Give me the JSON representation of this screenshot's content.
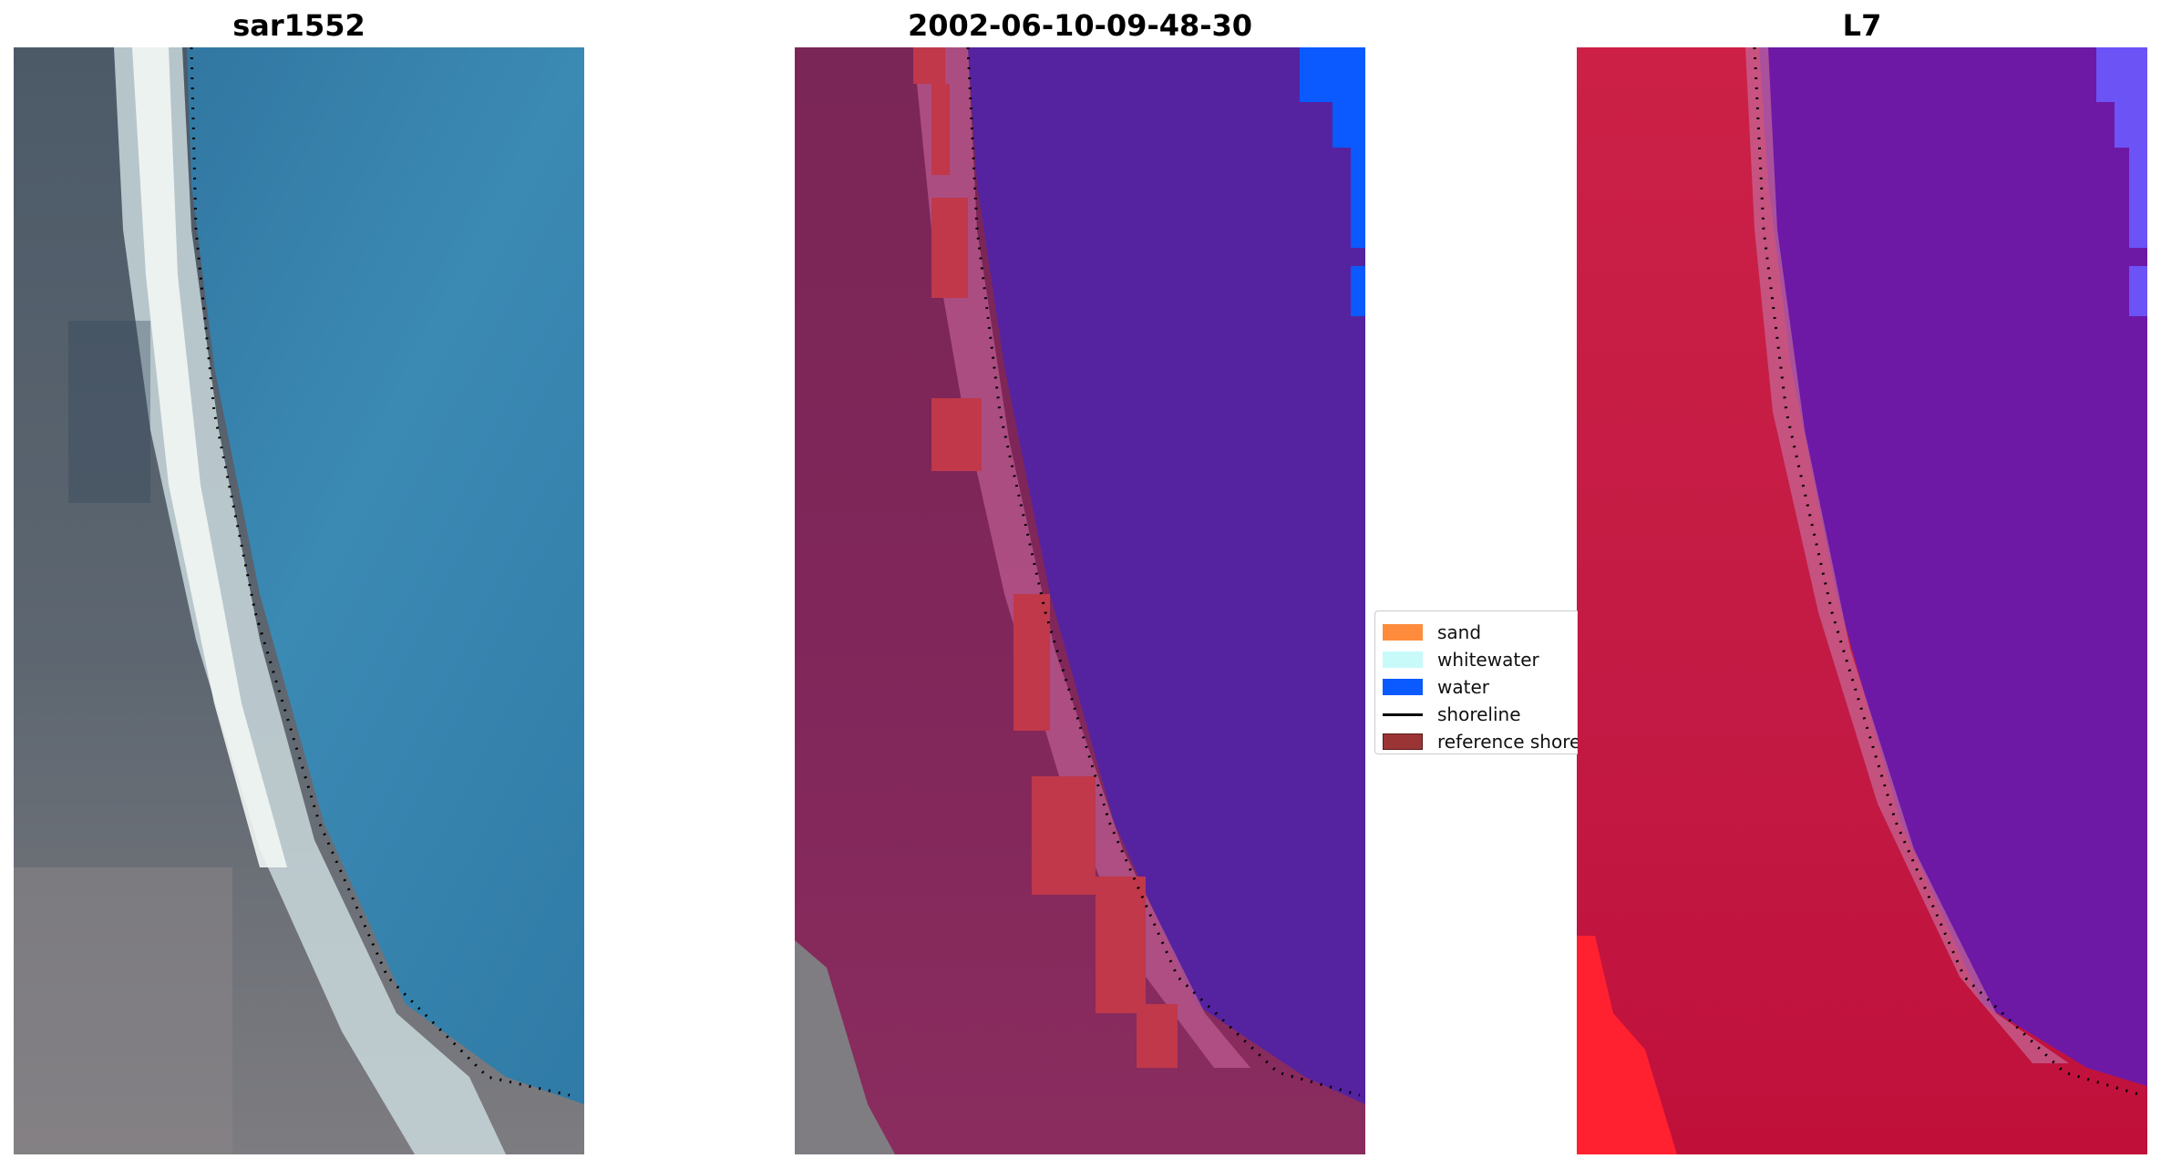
{
  "panels": {
    "rgb_title": "sar1552",
    "class_title": "2002-06-10-09-48-30",
    "mndwi_title": "L7"
  },
  "legend": {
    "items": [
      {
        "label": "sand",
        "color": "#ff8c3c"
      },
      {
        "label": "whitewater",
        "color": "#c8fafa"
      },
      {
        "label": "water",
        "color": "#0a5aff"
      },
      {
        "label": "shoreline",
        "color": "#000000"
      },
      {
        "label": "reference shoreline",
        "color": "#9b3535"
      }
    ]
  },
  "colors": {
    "water_class": "#5523a0",
    "sand_class_overlay": "#c0384a",
    "land_rgb": "#6a6f78",
    "water_rgb": "#3a88b2",
    "land_mndwi": "#c41a44",
    "water_mndwi": "#6d19a6"
  }
}
